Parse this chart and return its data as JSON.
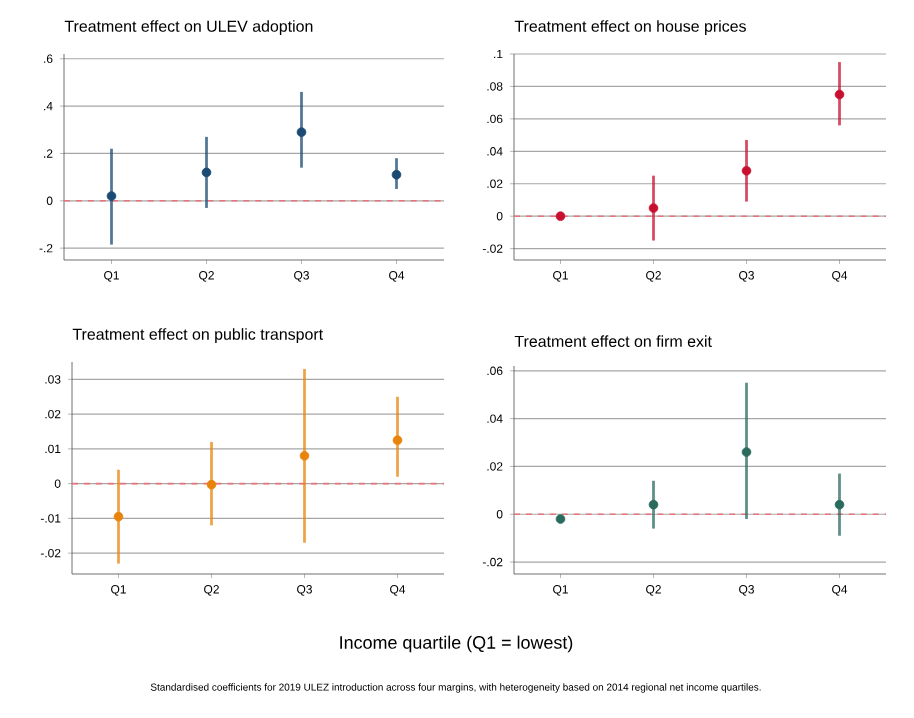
{
  "chart_data": [
    {
      "type": "scatter",
      "title": "Treatment effect on ULEV adoption",
      "categories": [
        "Q1",
        "Q2",
        "Q3",
        "Q4"
      ],
      "ylim": [
        -0.25,
        0.62
      ],
      "yticks": [
        {
          "value": -0.2,
          "label": "-.2"
        },
        0,
        {
          "value": 0.2,
          "label": ".2"
        },
        {
          "value": 0.4,
          "label": ".4"
        },
        {
          "value": 0.6,
          "label": ".6"
        }
      ],
      "grid": "y",
      "series": [
        {
          "color": "#1b4a72",
          "values": [
            0.02,
            0.12,
            0.29,
            0.11
          ],
          "errors": [
            [
              -0.185,
              0.22
            ],
            [
              -0.03,
              0.27
            ],
            [
              0.14,
              0.46
            ],
            [
              0.05,
              0.18
            ]
          ]
        }
      ],
      "ref_lines": [
        {
          "axis": "y",
          "value": 0,
          "color": "#e8737a",
          "line_style": "dashed"
        }
      ]
    },
    {
      "type": "scatter",
      "title": "Treatment effect on house prices",
      "categories": [
        "Q1",
        "Q2",
        "Q3",
        "Q4"
      ],
      "ylim": [
        -0.027,
        0.1
      ],
      "yticks": [
        {
          "value": -0.02,
          "label": "-.02"
        },
        0,
        {
          "value": 0.02,
          "label": ".02"
        },
        {
          "value": 0.04,
          "label": ".04"
        },
        {
          "value": 0.06,
          "label": ".06"
        },
        {
          "value": 0.08,
          "label": ".08"
        },
        {
          "value": 0.1,
          "label": ".1"
        }
      ],
      "grid": "y",
      "series": [
        {
          "color": "#c8102e",
          "values": [
            0,
            0.005,
            0.028,
            0.075
          ],
          "errors": [
            [
              -0.001,
              0.001
            ],
            [
              -0.015,
              0.025
            ],
            [
              0.009,
              0.047
            ],
            [
              0.056,
              0.095
            ]
          ]
        }
      ],
      "ref_lines": [
        {
          "axis": "y",
          "value": 0,
          "color": "#e8737a",
          "line_style": "dashed"
        }
      ]
    },
    {
      "type": "scatter",
      "title": "Treatment effect on public transport",
      "xlabel": "Income quartile (Q1 = lowest)",
      "categories": [
        "Q1",
        "Q2",
        "Q3",
        "Q4"
      ],
      "ylim": [
        -0.026,
        0.035
      ],
      "yticks": [
        {
          "value": -0.02,
          "label": "-.02"
        },
        {
          "value": -0.01,
          "label": "-.01"
        },
        0,
        {
          "value": 0.01,
          "label": ".01"
        },
        {
          "value": 0.02,
          "label": ".02"
        },
        {
          "value": 0.03,
          "label": ".03"
        }
      ],
      "grid": "y",
      "series": [
        {
          "color": "#e8840c",
          "values": [
            -0.0095,
            -0.0003,
            0.008,
            0.0125
          ],
          "errors": [
            [
              -0.023,
              0.004
            ],
            [
              -0.012,
              0.012
            ],
            [
              -0.017,
              0.033
            ],
            [
              0.002,
              0.025
            ]
          ]
        }
      ],
      "ref_lines": [
        {
          "axis": "y",
          "value": 0,
          "color": "#e8737a",
          "line_style": "dashed"
        }
      ],
      "annotations": [
        "Standardised coefficients for 2019 ULEZ introduction across four margins, with heterogeneity based on 2014 regional net income quartiles."
      ]
    },
    {
      "type": "scatter",
      "title": "Treatment effect on firm exit",
      "categories": [
        "Q1",
        "Q2",
        "Q3",
        "Q4"
      ],
      "ylim": [
        -0.025,
        0.062
      ],
      "yticks": [
        {
          "value": -0.02,
          "label": "-.02"
        },
        0,
        {
          "value": 0.02,
          "label": ".02"
        },
        {
          "value": 0.04,
          "label": ".04"
        },
        {
          "value": 0.06,
          "label": ".06"
        }
      ],
      "grid": "y",
      "series": [
        {
          "color": "#2a6b5e",
          "values": [
            -0.002,
            0.004,
            0.026,
            0.004
          ],
          "errors": [
            [
              -0.003,
              -0.001
            ],
            [
              -0.006,
              0.014
            ],
            [
              -0.002,
              0.055
            ],
            [
              -0.009,
              0.017
            ]
          ]
        }
      ],
      "ref_lines": [
        {
          "axis": "y",
          "value": 0,
          "color": "#e8737a",
          "line_style": "dashed"
        }
      ]
    }
  ]
}
